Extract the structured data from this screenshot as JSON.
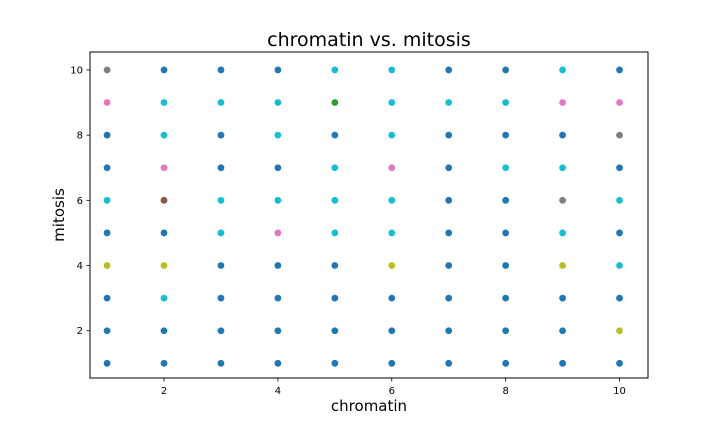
{
  "chart_data": {
    "type": "scatter",
    "title": "chromatin vs. mitosis",
    "xlabel": "chromatin",
    "ylabel": "mitosis",
    "xlim": [
      0.7,
      10.5
    ],
    "ylim": [
      0.55,
      10.55
    ],
    "xticks": [
      2,
      4,
      6,
      8,
      10
    ],
    "yticks": [
      2,
      4,
      6,
      8,
      10
    ],
    "grid": false,
    "points": [
      {
        "x": 1,
        "y": 1,
        "color": "#1f77b4"
      },
      {
        "x": 2,
        "y": 1,
        "color": "#1f77b4"
      },
      {
        "x": 3,
        "y": 1,
        "color": "#1f77b4"
      },
      {
        "x": 4,
        "y": 1,
        "color": "#1f77b4"
      },
      {
        "x": 5,
        "y": 1,
        "color": "#1f77b4"
      },
      {
        "x": 6,
        "y": 1,
        "color": "#1f77b4"
      },
      {
        "x": 7,
        "y": 1,
        "color": "#1f77b4"
      },
      {
        "x": 8,
        "y": 1,
        "color": "#1f77b4"
      },
      {
        "x": 9,
        "y": 1,
        "color": "#1f77b4"
      },
      {
        "x": 10,
        "y": 1,
        "color": "#1f77b4"
      },
      {
        "x": 1,
        "y": 2,
        "color": "#1f77b4"
      },
      {
        "x": 2,
        "y": 2,
        "color": "#1f77b4"
      },
      {
        "x": 3,
        "y": 2,
        "color": "#1f77b4"
      },
      {
        "x": 4,
        "y": 2,
        "color": "#1f77b4"
      },
      {
        "x": 5,
        "y": 2,
        "color": "#1f77b4"
      },
      {
        "x": 6,
        "y": 2,
        "color": "#1f77b4"
      },
      {
        "x": 7,
        "y": 2,
        "color": "#1f77b4"
      },
      {
        "x": 8,
        "y": 2,
        "color": "#1f77b4"
      },
      {
        "x": 9,
        "y": 2,
        "color": "#1f77b4"
      },
      {
        "x": 10,
        "y": 2,
        "color": "#bcbd22"
      },
      {
        "x": 1,
        "y": 3,
        "color": "#1f77b4"
      },
      {
        "x": 2,
        "y": 3,
        "color": "#17becf"
      },
      {
        "x": 3,
        "y": 3,
        "color": "#1f77b4"
      },
      {
        "x": 4,
        "y": 3,
        "color": "#1f77b4"
      },
      {
        "x": 5,
        "y": 3,
        "color": "#1f77b4"
      },
      {
        "x": 6,
        "y": 3,
        "color": "#1f77b4"
      },
      {
        "x": 7,
        "y": 3,
        "color": "#1f77b4"
      },
      {
        "x": 8,
        "y": 3,
        "color": "#1f77b4"
      },
      {
        "x": 9,
        "y": 3,
        "color": "#1f77b4"
      },
      {
        "x": 10,
        "y": 3,
        "color": "#1f77b4"
      },
      {
        "x": 1,
        "y": 4,
        "color": "#bcbd22"
      },
      {
        "x": 2,
        "y": 4,
        "color": "#bcbd22"
      },
      {
        "x": 3,
        "y": 4,
        "color": "#1f77b4"
      },
      {
        "x": 4,
        "y": 4,
        "color": "#1f77b4"
      },
      {
        "x": 5,
        "y": 4,
        "color": "#1f77b4"
      },
      {
        "x": 6,
        "y": 4,
        "color": "#bcbd22"
      },
      {
        "x": 7,
        "y": 4,
        "color": "#1f77b4"
      },
      {
        "x": 8,
        "y": 4,
        "color": "#1f77b4"
      },
      {
        "x": 9,
        "y": 4,
        "color": "#bcbd22"
      },
      {
        "x": 10,
        "y": 4,
        "color": "#17becf"
      },
      {
        "x": 1,
        "y": 5,
        "color": "#1f77b4"
      },
      {
        "x": 2,
        "y": 5,
        "color": "#1f77b4"
      },
      {
        "x": 3,
        "y": 5,
        "color": "#17becf"
      },
      {
        "x": 4,
        "y": 5,
        "color": "#e377c2"
      },
      {
        "x": 5,
        "y": 5,
        "color": "#17becf"
      },
      {
        "x": 6,
        "y": 5,
        "color": "#17becf"
      },
      {
        "x": 7,
        "y": 5,
        "color": "#1f77b4"
      },
      {
        "x": 8,
        "y": 5,
        "color": "#1f77b4"
      },
      {
        "x": 9,
        "y": 5,
        "color": "#17becf"
      },
      {
        "x": 10,
        "y": 5,
        "color": "#1f77b4"
      },
      {
        "x": 1,
        "y": 6,
        "color": "#17becf"
      },
      {
        "x": 2,
        "y": 6,
        "color": "#8c564b"
      },
      {
        "x": 3,
        "y": 6,
        "color": "#17becf"
      },
      {
        "x": 4,
        "y": 6,
        "color": "#17becf"
      },
      {
        "x": 5,
        "y": 6,
        "color": "#17becf"
      },
      {
        "x": 6,
        "y": 6,
        "color": "#17becf"
      },
      {
        "x": 7,
        "y": 6,
        "color": "#1f77b4"
      },
      {
        "x": 8,
        "y": 6,
        "color": "#1f77b4"
      },
      {
        "x": 9,
        "y": 6,
        "color": "#7f7f7f"
      },
      {
        "x": 10,
        "y": 6,
        "color": "#17becf"
      },
      {
        "x": 1,
        "y": 7,
        "color": "#1f77b4"
      },
      {
        "x": 2,
        "y": 7,
        "color": "#e377c2"
      },
      {
        "x": 3,
        "y": 7,
        "color": "#1f77b4"
      },
      {
        "x": 4,
        "y": 7,
        "color": "#1f77b4"
      },
      {
        "x": 5,
        "y": 7,
        "color": "#17becf"
      },
      {
        "x": 6,
        "y": 7,
        "color": "#e377c2"
      },
      {
        "x": 7,
        "y": 7,
        "color": "#1f77b4"
      },
      {
        "x": 8,
        "y": 7,
        "color": "#17becf"
      },
      {
        "x": 9,
        "y": 7,
        "color": "#17becf"
      },
      {
        "x": 10,
        "y": 7,
        "color": "#1f77b4"
      },
      {
        "x": 1,
        "y": 8,
        "color": "#1f77b4"
      },
      {
        "x": 2,
        "y": 8,
        "color": "#17becf"
      },
      {
        "x": 3,
        "y": 8,
        "color": "#1f77b4"
      },
      {
        "x": 4,
        "y": 8,
        "color": "#17becf"
      },
      {
        "x": 5,
        "y": 8,
        "color": "#1f77b4"
      },
      {
        "x": 6,
        "y": 8,
        "color": "#17becf"
      },
      {
        "x": 7,
        "y": 8,
        "color": "#1f77b4"
      },
      {
        "x": 8,
        "y": 8,
        "color": "#1f77b4"
      },
      {
        "x": 9,
        "y": 8,
        "color": "#1f77b4"
      },
      {
        "x": 10,
        "y": 8,
        "color": "#7f7f7f"
      },
      {
        "x": 1,
        "y": 9,
        "color": "#e377c2"
      },
      {
        "x": 2,
        "y": 9,
        "color": "#17becf"
      },
      {
        "x": 3,
        "y": 9,
        "color": "#17becf"
      },
      {
        "x": 4,
        "y": 9,
        "color": "#17becf"
      },
      {
        "x": 5,
        "y": 9,
        "color": "#2ca02c"
      },
      {
        "x": 6,
        "y": 9,
        "color": "#17becf"
      },
      {
        "x": 7,
        "y": 9,
        "color": "#17becf"
      },
      {
        "x": 8,
        "y": 9,
        "color": "#17becf"
      },
      {
        "x": 9,
        "y": 9,
        "color": "#e377c2"
      },
      {
        "x": 10,
        "y": 9,
        "color": "#e377c2"
      },
      {
        "x": 1,
        "y": 10,
        "color": "#7f7f7f"
      },
      {
        "x": 2,
        "y": 10,
        "color": "#1f77b4"
      },
      {
        "x": 3,
        "y": 10,
        "color": "#1f77b4"
      },
      {
        "x": 4,
        "y": 10,
        "color": "#1f77b4"
      },
      {
        "x": 5,
        "y": 10,
        "color": "#17becf"
      },
      {
        "x": 6,
        "y": 10,
        "color": "#17becf"
      },
      {
        "x": 7,
        "y": 10,
        "color": "#1f77b4"
      },
      {
        "x": 8,
        "y": 10,
        "color": "#1f77b4"
      },
      {
        "x": 9,
        "y": 10,
        "color": "#17becf"
      },
      {
        "x": 10,
        "y": 10,
        "color": "#1f77b4"
      }
    ]
  }
}
